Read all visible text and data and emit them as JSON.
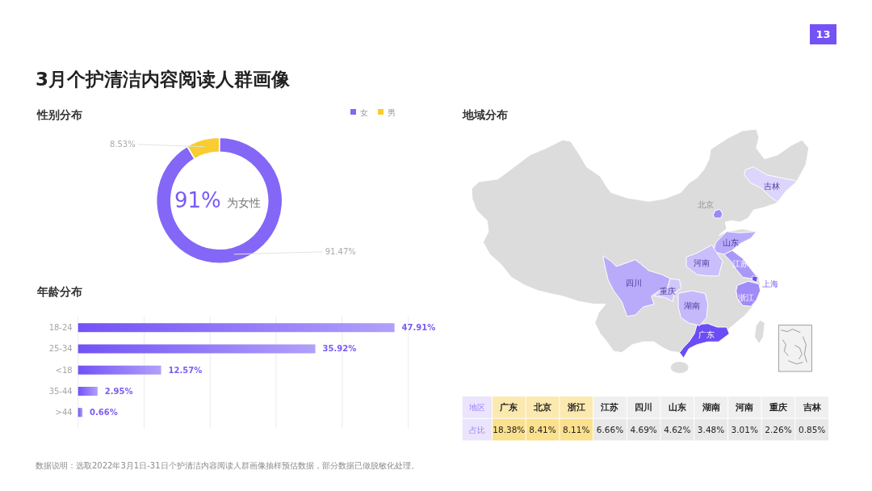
{
  "chart_data": [
    {
      "type": "other",
      "title": "3月个护清洁内容阅读人群画像",
      "annotations": [
        "13",
        "数据说明：选取2022年3月1日-31日个护清洁内容阅读人群画像抽样预估数据，部分数据已做脱敏化处理。"
      ]
    },
    {
      "type": "donut",
      "title": "性别分布",
      "categories": [
        "女",
        "男"
      ],
      "values": [
        91.47,
        8.53
      ],
      "colors": [
        "#8467f6",
        "#f9cc2f"
      ],
      "value_labels": [
        "91.47%",
        "8.53%"
      ],
      "legend": "top right",
      "annotations": [
        "91%",
        "为女性"
      ]
    },
    {
      "type": "bar",
      "orientation": "horizontal",
      "title": "年龄分布",
      "categories": [
        "18-24",
        "25-34",
        "<18",
        "35-44",
        ">44"
      ],
      "values": [
        47.91,
        35.92,
        12.57,
        2.95,
        0.66
      ],
      "color": "#7252f5",
      "value_labels": [
        "47.91%",
        "35.92%",
        "12.57%",
        "2.95%",
        "0.66%"
      ],
      "xlim": [
        0,
        50
      ],
      "xticks": [
        {
          "value": 0,
          "label": null
        },
        {
          "value": 10,
          "label": null
        },
        {
          "value": 20,
          "label": null
        },
        {
          "value": 30,
          "label": null
        },
        {
          "value": 40,
          "label": null
        },
        {
          "value": 50,
          "label": null
        }
      ],
      "grid": "x",
      "tick_labels": "y"
    },
    {
      "type": "heatmap",
      "title": "地域分布",
      "xlabel": "地区",
      "categories": [
        "广东",
        "北京",
        "浙江",
        "江苏",
        "四川",
        "山东",
        "湖南",
        "河南",
        "重庆",
        "吉林"
      ],
      "y_categories": [
        "占比"
      ],
      "cells": [
        [
          18.38,
          8.41,
          8.11,
          6.66,
          4.69,
          4.62,
          3.48,
          3.01,
          2.26,
          0.85
        ]
      ],
      "cell_labels": [
        [
          "18.38%",
          "8.41%",
          "8.11%",
          "6.66%",
          "4.69%",
          "4.62%",
          "3.48%",
          "3.01%",
          "2.26%",
          "0.85%"
        ]
      ],
      "colors": [
        "#fbe08e",
        "#fbe08e",
        "#fbe08e",
        "#e8e8e8",
        "#e8e8e8",
        "#e8e8e8",
        "#e8e8e8",
        "#e8e8e8",
        "#e8e8e8",
        "#e8e8e8"
      ],
      "annotations": [
        "上海"
      ]
    }
  ]
}
